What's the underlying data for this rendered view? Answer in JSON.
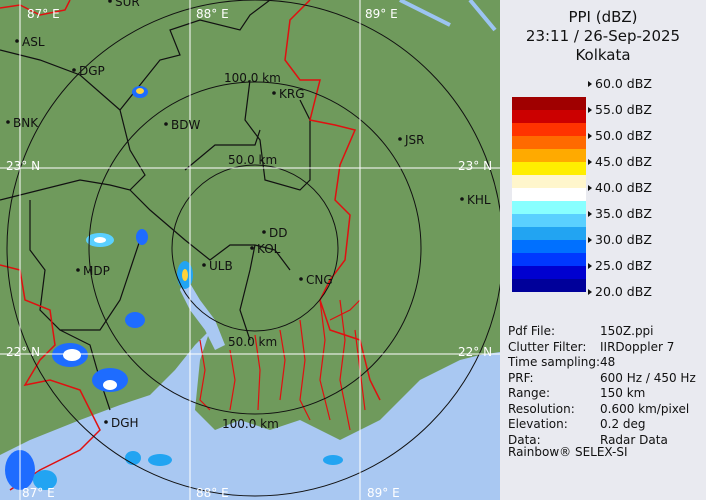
{
  "legend": {
    "title": "PPI (dBZ)",
    "datetime": "23:11 / 26-Sep-2025",
    "station": "Kolkata",
    "labels": [
      "60.0 dBZ",
      "55.0 dBZ",
      "50.0 dBZ",
      "45.0 dBZ",
      "40.0 dBZ",
      "35.0 dBZ",
      "30.0 dBZ",
      "25.0 dBZ",
      "20.0 dBZ"
    ],
    "colors": [
      "#a00000",
      "#cc0000",
      "#ff3300",
      "#ff6a00",
      "#ffaa00",
      "#ffee00",
      "#fff6cc",
      "#ffffff",
      "#88ffff",
      "#5ad0ff",
      "#22a4f2",
      "#0070ff",
      "#0038ff",
      "#0000d0",
      "#00009a"
    ]
  },
  "info": [
    {
      "k": "Pdf File:",
      "v": "150Z.ppi"
    },
    {
      "k": "Clutter Filter:",
      "v": "IIRDoppler 7"
    },
    {
      "k": "Time sampling:",
      "v": "48"
    },
    {
      "k": "PRF:",
      "v": "600 Hz / 450 Hz"
    },
    {
      "k": "Range:",
      "v": "150 km"
    },
    {
      "k": "Resolution:",
      "v": "0.600 km/pixel"
    },
    {
      "k": "Elevation:",
      "v": "0.2 deg"
    },
    {
      "k": "Data:",
      "v": "Radar Data"
    }
  ],
  "credit": "Rainbow® SELEX-SI",
  "map": {
    "grid": {
      "lon": [
        "87° E",
        "88° E",
        "89° E"
      ],
      "lat": [
        "23° N",
        "22° N"
      ]
    },
    "rings": [
      "50.0 km",
      "100.0 km",
      "50.0 km",
      "100.0 km"
    ],
    "cities": [
      "SUR",
      "ASL",
      "DGP",
      "BNK",
      "BDW",
      "KRG",
      "JSR",
      "KHL",
      "DD",
      "KOL",
      "ULB",
      "CNG",
      "MDP",
      "DGH"
    ],
    "colors": {
      "land": "#6f9a5c",
      "sea": "#a9c8f2",
      "border": "#e01010",
      "district": "#111111"
    }
  }
}
